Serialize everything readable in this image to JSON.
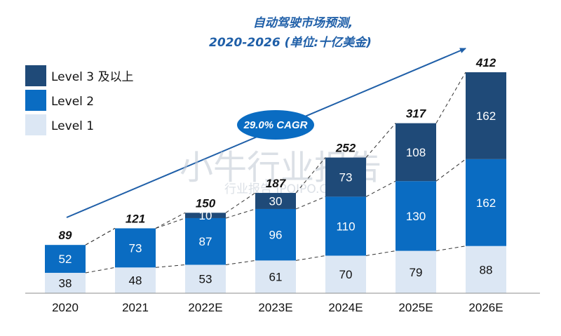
{
  "watermark": {
    "main": "小牛行业报告",
    "sub": "行业报告 IPOIPO.CN"
  },
  "chart_data": {
    "type": "bar",
    "stacked": true,
    "title": "自动驾驶市场预测,",
    "subtitle": "2020-2026 (单位:十亿美金)",
    "categories": [
      "2020",
      "2021",
      "2022E",
      "2023E",
      "2024E",
      "2025E",
      "2026E"
    ],
    "series": [
      {
        "name": "Level 1",
        "color": "#dce7f4",
        "label_color": "#111111",
        "values": [
          38,
          48,
          53,
          61,
          70,
          79,
          88
        ]
      },
      {
        "name": "Level 2",
        "color": "#0a6cc2",
        "label_color": "#ffffff",
        "values": [
          52,
          73,
          87,
          96,
          110,
          130,
          162
        ]
      },
      {
        "name": "Level 3 及以上",
        "color": "#1f4a78",
        "label_color": "#ffffff",
        "values": [
          null,
          null,
          10,
          30,
          73,
          108,
          162
        ]
      }
    ],
    "totals": [
      89,
      121,
      150,
      187,
      252,
      317,
      412
    ],
    "annotation": {
      "text": "29.0% CAGR",
      "color": "#0a6cc2"
    },
    "legend": {
      "position": "top-left",
      "order": [
        "Level 3 及以上",
        "Level 2",
        "Level 1"
      ]
    },
    "ylim": [
      0,
      412
    ],
    "grid": false,
    "xlabel": "",
    "ylabel": ""
  }
}
